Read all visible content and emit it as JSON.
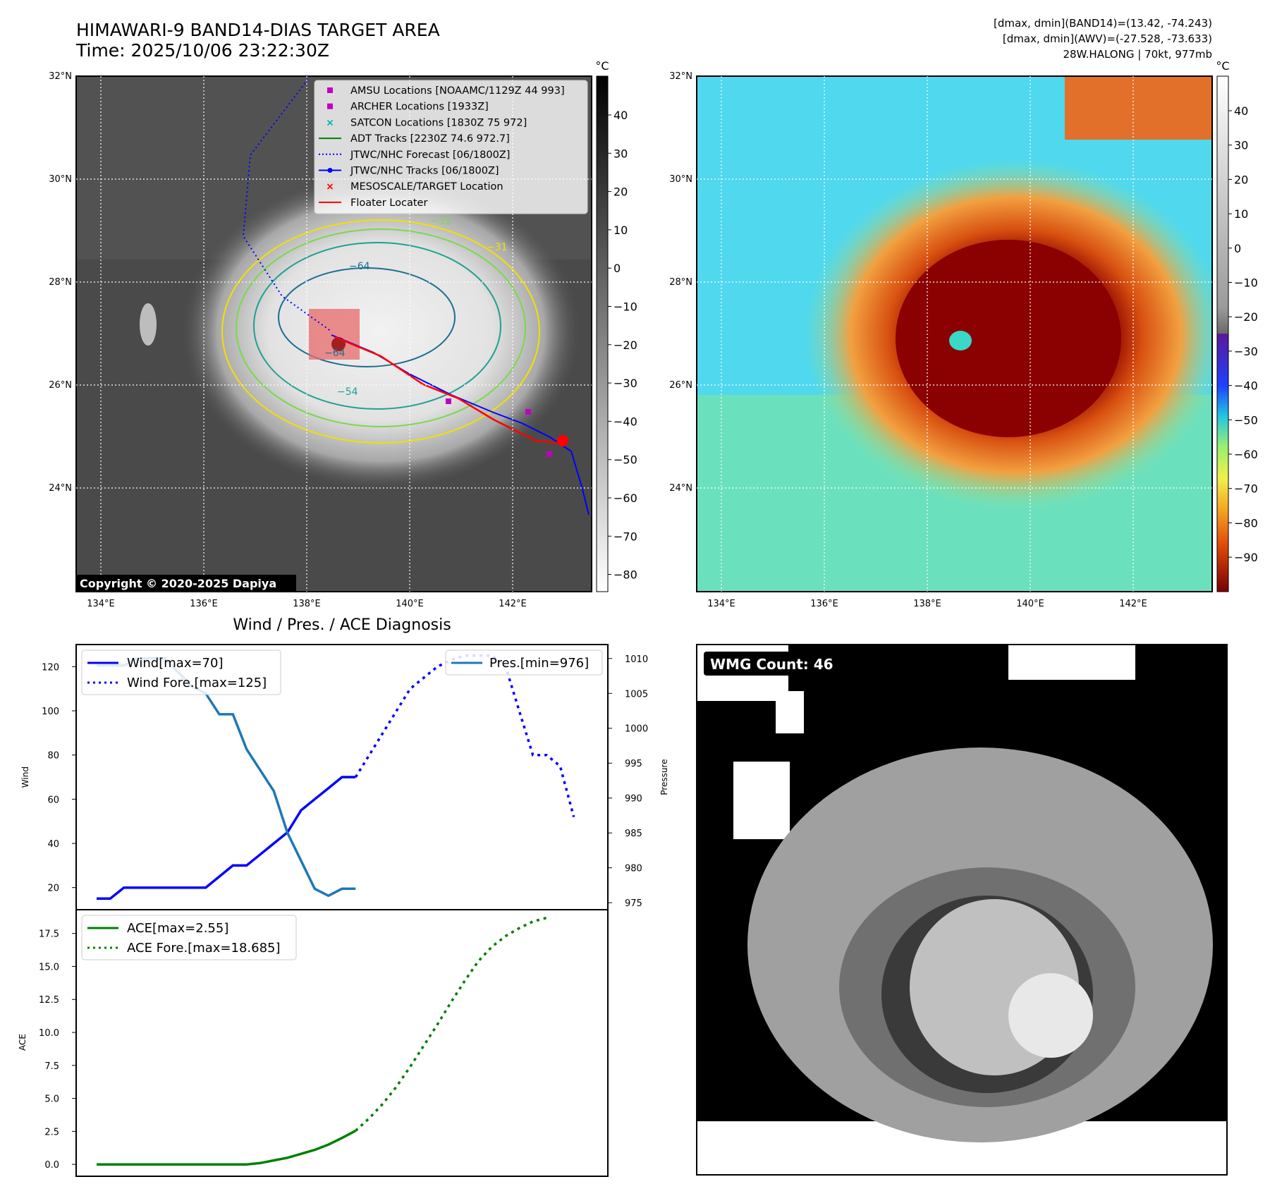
{
  "header": {
    "title_line1": "HIMAWARI-9 BAND14-DIAS TARGET AREA",
    "title_line2": "Time: 2025/10/06 23:22:30Z",
    "info_line1": "[dmax, dmin](BAND14)=(13.42, -74.243)",
    "info_line2": "[dmax, dmin](AWV)=(-27.528, -73.633)",
    "info_line3": "28W.HALONG | 70kt, 977mb"
  },
  "map_axes": {
    "lat_ticks": [
      "32°N",
      "30°N",
      "28°N",
      "26°N",
      "24°N"
    ],
    "lon_ticks": [
      "134°E",
      "136°E",
      "138°E",
      "140°E",
      "142°E"
    ]
  },
  "colorbar_left": {
    "unit": "°C",
    "ticks": [
      "40",
      "30",
      "20",
      "10",
      "0",
      "−10",
      "−20",
      "−30",
      "−40",
      "−50",
      "−60",
      "−70",
      "−80"
    ]
  },
  "colorbar_right": {
    "unit": "°C",
    "ticks": [
      "40",
      "30",
      "20",
      "10",
      "0",
      "−10",
      "−20",
      "−30",
      "−40",
      "−50",
      "−60",
      "−70",
      "−80",
      "−90"
    ]
  },
  "contour_labels": [
    "−64",
    "−64",
    "−54",
    "−31",
    "−31"
  ],
  "map_legend": [
    {
      "label": "AMSU Locations [NOAAMC/1129Z 44 993]",
      "marker": "square",
      "color": "#c000c0"
    },
    {
      "label": "ARCHER Locations [1933Z]",
      "marker": "square",
      "color": "#c000c0"
    },
    {
      "label": "SATCON Locations [1830Z 75 972]",
      "marker": "x",
      "color": "#00b0b0"
    },
    {
      "label": "ADT Tracks [2230Z 74.6 972.7]",
      "marker": "solid-line",
      "color": "#008000"
    },
    {
      "label": "JTWC/NHC Forecast [06/1800Z]",
      "marker": "dotted-line",
      "color": "#0000ff"
    },
    {
      "label": "JTWC/NHC Tracks [06/1800Z]",
      "marker": "line-dot",
      "color": "#0000ff"
    },
    {
      "label": "MESOSCALE/TARGET Location",
      "marker": "x",
      "color": "#ff0000"
    },
    {
      "label": "Floater Locater",
      "marker": "solid-line",
      "color": "#ff0000"
    }
  ],
  "copyright": "Copyright © 2020-2025 Dapiya",
  "wmg": {
    "label": "WMG Count: 46"
  },
  "chart_data": [
    {
      "type": "line",
      "title": "Wind / Pres. / ACE Diagnosis",
      "ylabel": "Wind",
      "y2label": "Pressure",
      "ylim": [
        10,
        130
      ],
      "y2lim": [
        974,
        1012
      ],
      "yticks": [
        20,
        40,
        60,
        80,
        100,
        120
      ],
      "y2ticks": [
        975,
        980,
        985,
        990,
        995,
        1000,
        1005,
        1010
      ],
      "legend_left": [
        "Wind[max=70]",
        "Wind Fore.[max=125]"
      ],
      "legend_right": [
        "Pres.[min=976]"
      ],
      "series": [
        {
          "name": "Wind[max=70]",
          "axis": "left",
          "style": "solid",
          "color": "#0000ff",
          "x": [
            0,
            1,
            2,
            3,
            4,
            5,
            6,
            7,
            8,
            9,
            10,
            11,
            12,
            13,
            14,
            15,
            16,
            17,
            18,
            19
          ],
          "values": [
            15,
            15,
            20,
            20,
            20,
            20,
            20,
            20,
            20,
            25,
            30,
            30,
            35,
            40,
            45,
            55,
            60,
            65,
            70,
            70
          ]
        },
        {
          "name": "Wind Fore.[max=125]",
          "axis": "left",
          "style": "dotted",
          "color": "#0000ff",
          "x": [
            19,
            20,
            21,
            22,
            23,
            24,
            25,
            26,
            27,
            28,
            29,
            30,
            31,
            32,
            33,
            34,
            35
          ],
          "values": [
            70,
            80,
            90,
            100,
            110,
            115,
            120,
            123,
            125,
            125,
            125,
            120,
            100,
            80,
            80,
            75,
            52
          ]
        },
        {
          "name": "Pres.[min=976]",
          "axis": "right",
          "style": "solid",
          "color": "#1f77b4",
          "x": [
            0,
            1,
            2,
            3,
            4,
            5,
            6,
            7,
            8,
            9,
            10,
            11,
            12,
            13,
            14,
            15,
            16,
            17,
            18,
            19
          ],
          "values": [
            1009,
            1009,
            1009,
            1010,
            1010,
            1010,
            1008,
            1006,
            1005,
            1002,
            1002,
            997,
            994,
            991,
            985,
            981,
            977,
            976,
            977,
            977
          ]
        }
      ]
    },
    {
      "type": "line",
      "ylabel": "ACE",
      "ylim": [
        -0.9,
        19.3
      ],
      "yticks": [
        0.0,
        2.5,
        5.0,
        7.5,
        10.0,
        12.5,
        15.0,
        17.5
      ],
      "legend": [
        "ACE[max=2.55]",
        "ACE Fore.[max=18.685]"
      ],
      "series": [
        {
          "name": "ACE[max=2.55]",
          "style": "solid",
          "color": "#008000",
          "x": [
            0,
            2,
            4,
            6,
            8,
            10,
            11,
            12,
            13,
            14,
            15,
            16,
            17,
            18,
            19
          ],
          "values": [
            0,
            0,
            0,
            0,
            0,
            0,
            0,
            0.1,
            0.3,
            0.5,
            0.8,
            1.1,
            1.5,
            2.0,
            2.55
          ]
        },
        {
          "name": "ACE Fore.[max=18.685]",
          "style": "dotted",
          "color": "#008000",
          "x": [
            19,
            20,
            21,
            22,
            23,
            24,
            25,
            26,
            27,
            28,
            29,
            30,
            31,
            32,
            33
          ],
          "values": [
            2.55,
            3.5,
            4.6,
            5.9,
            7.4,
            9.0,
            10.6,
            12.3,
            13.9,
            15.4,
            16.5,
            17.3,
            17.9,
            18.4,
            18.685
          ]
        }
      ]
    }
  ]
}
